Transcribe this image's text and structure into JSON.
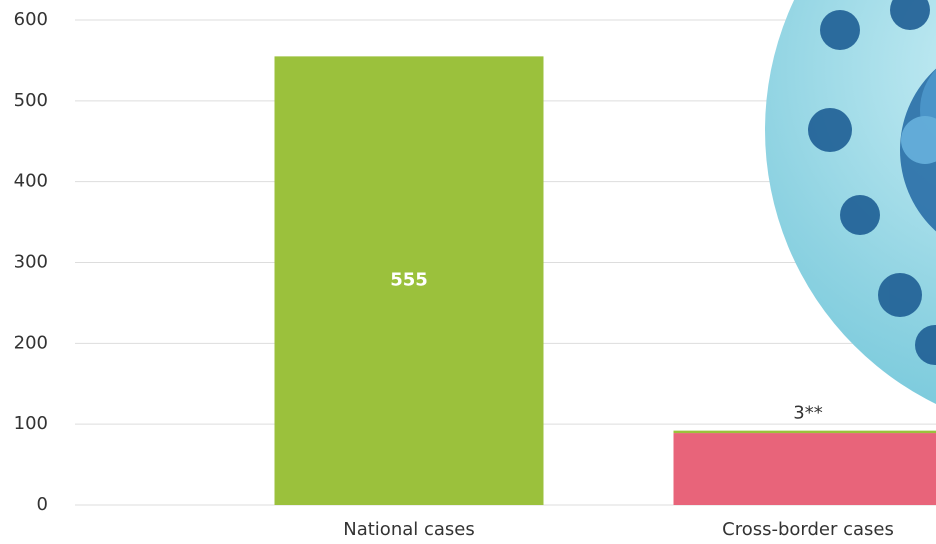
{
  "chart_data": {
    "type": "bar",
    "stacked": true,
    "categories": [
      "National cases",
      "Cross-border cases"
    ],
    "series": [
      {
        "color": "#e8647a",
        "values": [
          null,
          89
        ]
      },
      {
        "color": "#9bc13c",
        "values": [
          555,
          3
        ],
        "value_labels": [
          "555",
          "3**"
        ]
      }
    ],
    "ylim": [
      0,
      600
    ],
    "yticks": [
      0,
      100,
      200,
      300,
      400,
      500,
      600
    ],
    "grid": true
  }
}
